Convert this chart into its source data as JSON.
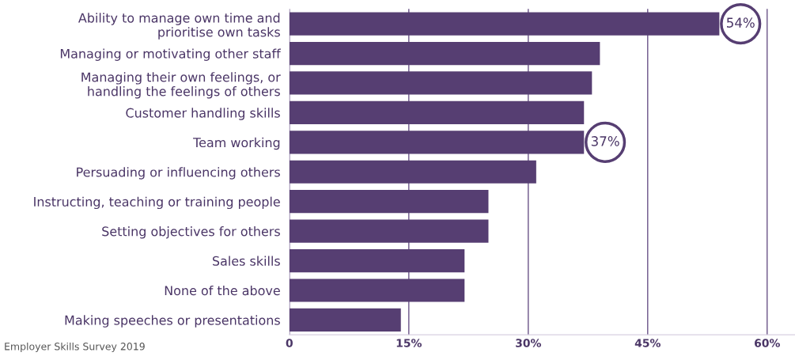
{
  "chart_data": {
    "type": "bar",
    "orientation": "horizontal",
    "categories": [
      "Ability to manage own time and\nprioritise own tasks",
      "Managing or motivating other staff",
      "Managing their own feelings, or\nhandling the feelings of others",
      "Customer handling skills",
      "Team working",
      "Persuading or influencing others",
      "Instructing, teaching or training people",
      "Setting objectives for others",
      "Sales skills",
      "None of the above",
      "Making speeches or presentations"
    ],
    "values": [
      54,
      39,
      38,
      37,
      37,
      31,
      25,
      25,
      22,
      22,
      14
    ],
    "value_labels": [
      "54%",
      null,
      null,
      null,
      "37%",
      null,
      null,
      null,
      null,
      null,
      null
    ],
    "color": "#563e72",
    "xlim": [
      0,
      63.5
    ],
    "xticks": [
      0,
      {
        "value": 15,
        "label": "15%"
      },
      {
        "value": 30,
        "label": "30%"
      },
      {
        "value": 45,
        "label": "45%"
      },
      {
        "value": 60,
        "label": "60%"
      }
    ],
    "grid": "x",
    "annotations": [
      "Employer Skills Survey 2019"
    ]
  }
}
